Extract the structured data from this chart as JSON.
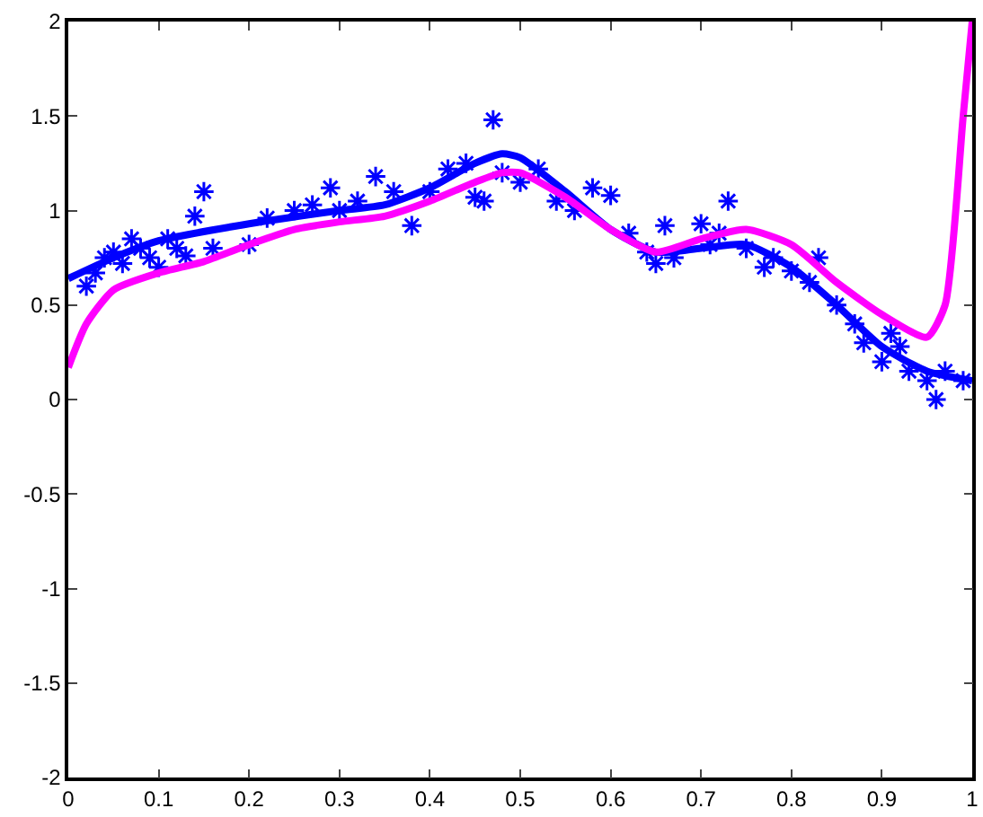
{
  "chart_data": {
    "type": "line",
    "xlim": [
      0,
      1
    ],
    "ylim": [
      -2,
      2
    ],
    "xticks": [
      0,
      0.1,
      0.2,
      0.3,
      0.4,
      0.5,
      0.6,
      0.7,
      0.8,
      0.9,
      1
    ],
    "yticks": [
      -2,
      -1.5,
      -1,
      -0.5,
      0,
      0.5,
      1,
      1.5,
      2
    ],
    "grid": false,
    "series": [
      {
        "type": "scatter",
        "marker": "cross",
        "color": "#0000ff",
        "x": [
          0.02,
          0.03,
          0.04,
          0.05,
          0.06,
          0.07,
          0.08,
          0.09,
          0.1,
          0.11,
          0.12,
          0.13,
          0.14,
          0.15,
          0.16,
          0.2,
          0.22,
          0.25,
          0.27,
          0.29,
          0.3,
          0.32,
          0.34,
          0.36,
          0.38,
          0.4,
          0.42,
          0.44,
          0.45,
          0.46,
          0.47,
          0.48,
          0.5,
          0.52,
          0.54,
          0.56,
          0.58,
          0.6,
          0.62,
          0.64,
          0.65,
          0.66,
          0.67,
          0.7,
          0.71,
          0.72,
          0.73,
          0.75,
          0.77,
          0.78,
          0.8,
          0.82,
          0.83,
          0.85,
          0.87,
          0.88,
          0.9,
          0.91,
          0.92,
          0.93,
          0.95,
          0.96,
          0.97,
          0.99
        ],
        "values": [
          0.6,
          0.67,
          0.75,
          0.78,
          0.72,
          0.85,
          0.8,
          0.75,
          0.7,
          0.85,
          0.8,
          0.76,
          0.97,
          1.1,
          0.8,
          0.82,
          0.96,
          1.0,
          1.03,
          1.12,
          1.0,
          1.05,
          1.18,
          1.1,
          0.92,
          1.1,
          1.22,
          1.25,
          1.07,
          1.05,
          1.48,
          1.2,
          1.15,
          1.22,
          1.05,
          1.0,
          1.12,
          1.08,
          0.88,
          0.78,
          0.72,
          0.92,
          0.75,
          0.93,
          0.82,
          0.88,
          1.05,
          0.8,
          0.7,
          0.75,
          0.68,
          0.62,
          0.75,
          0.5,
          0.4,
          0.3,
          0.2,
          0.35,
          0.28,
          0.15,
          0.1,
          0.0,
          0.15,
          0.1
        ]
      },
      {
        "color": "#0000ff",
        "x": [
          0,
          0.05,
          0.1,
          0.2,
          0.3,
          0.35,
          0.4,
          0.45,
          0.48,
          0.5,
          0.55,
          0.6,
          0.65,
          0.7,
          0.75,
          0.8,
          0.85,
          0.9,
          0.95,
          1
        ],
        "values": [
          0.64,
          0.75,
          0.84,
          0.93,
          1.0,
          1.03,
          1.12,
          1.25,
          1.3,
          1.28,
          1.1,
          0.9,
          0.78,
          0.8,
          0.82,
          0.7,
          0.5,
          0.28,
          0.15,
          0.1
        ]
      },
      {
        "color": "#ff00ff",
        "x": [
          0,
          0.02,
          0.05,
          0.1,
          0.15,
          0.2,
          0.25,
          0.3,
          0.35,
          0.4,
          0.45,
          0.48,
          0.5,
          0.55,
          0.6,
          0.65,
          0.7,
          0.75,
          0.8,
          0.85,
          0.9,
          0.95,
          0.97,
          0.99,
          1
        ],
        "values": [
          0.17,
          0.4,
          0.58,
          0.67,
          0.73,
          0.82,
          0.9,
          0.94,
          0.97,
          1.05,
          1.15,
          1.2,
          1.2,
          1.07,
          0.9,
          0.78,
          0.85,
          0.9,
          0.82,
          0.62,
          0.45,
          0.33,
          0.5,
          1.5,
          2
        ]
      }
    ]
  }
}
